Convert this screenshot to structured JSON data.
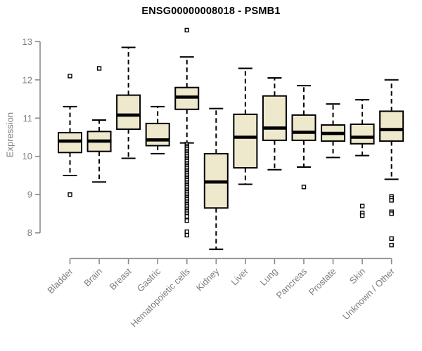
{
  "chart_data": {
    "type": "boxplot",
    "title": "ENSG00000008018 - PSMB1",
    "ylabel": "Expression",
    "xlabel": "",
    "yaxis_range": [
      8,
      13
    ],
    "yticks": [
      8,
      9,
      10,
      11,
      12,
      13
    ],
    "grid": false,
    "axis_color": "#8a8a8a",
    "tick_label_color": "#7d7d7d",
    "box_fill": "#EEE8CD",
    "box_stroke": "#000000",
    "categories": [
      "Bladder",
      "Brain",
      "Breast",
      "Gastric",
      "Hematopoietic cells",
      "Kidney",
      "Liver",
      "Lung",
      "Pancreas",
      "Prostate",
      "Skin",
      "Unknown / Other"
    ],
    "boxes": [
      {
        "label": "Bladder",
        "slug": "bladder",
        "low": 9.5,
        "q1": 10.1,
        "median": 10.4,
        "q3": 10.62,
        "high": 11.3,
        "outliers": [
          12.1,
          9.0
        ]
      },
      {
        "label": "Brain",
        "slug": "brain",
        "low": 9.33,
        "q1": 10.13,
        "median": 10.4,
        "q3": 10.65,
        "high": 10.95,
        "outliers": [
          12.3
        ]
      },
      {
        "label": "Breast",
        "slug": "breast",
        "low": 9.95,
        "q1": 10.71,
        "median": 11.08,
        "q3": 11.6,
        "high": 12.85,
        "outliers": []
      },
      {
        "label": "Gastric",
        "slug": "gastric",
        "low": 10.07,
        "q1": 10.28,
        "median": 10.43,
        "q3": 10.86,
        "high": 11.3,
        "outliers": []
      },
      {
        "label": "Hematopoietic cells",
        "slug": "hematopoietic-cells",
        "low": 10.35,
        "q1": 11.23,
        "median": 11.55,
        "q3": 11.8,
        "high": 12.6,
        "outliers": [
          13.3,
          10.32,
          10.275,
          10.23,
          10.185,
          10.14,
          10.095,
          10.05,
          10.005,
          9.96,
          9.915,
          9.87,
          9.825,
          9.78,
          9.735,
          9.69,
          9.645,
          9.6,
          9.555,
          9.51,
          9.465,
          9.42,
          9.375,
          9.33,
          9.285,
          9.24,
          9.195,
          9.15,
          9.105,
          9.06,
          9.015,
          8.97,
          8.925,
          8.88,
          8.835,
          8.79,
          8.745,
          8.7,
          8.655,
          8.61,
          8.565,
          8.52,
          8.475,
          8.43,
          8.32,
          8.03,
          7.94
        ]
      },
      {
        "label": "Kidney",
        "slug": "kidney",
        "low": 7.57,
        "q1": 8.65,
        "median": 9.33,
        "q3": 10.07,
        "high": 11.25,
        "outliers": []
      },
      {
        "label": "Liver",
        "slug": "liver",
        "low": 9.27,
        "q1": 9.7,
        "median": 10.5,
        "q3": 11.1,
        "high": 12.3,
        "outliers": []
      },
      {
        "label": "Lung",
        "slug": "lung",
        "low": 9.65,
        "q1": 10.42,
        "median": 10.74,
        "q3": 11.58,
        "high": 12.05,
        "outliers": []
      },
      {
        "label": "Pancreas",
        "slug": "pancreas",
        "low": 9.72,
        "q1": 10.42,
        "median": 10.63,
        "q3": 11.08,
        "high": 11.85,
        "outliers": [
          9.2
        ]
      },
      {
        "label": "Prostate",
        "slug": "prostate",
        "low": 9.97,
        "q1": 10.4,
        "median": 10.6,
        "q3": 10.82,
        "high": 11.37,
        "outliers": []
      },
      {
        "label": "Skin",
        "slug": "skin",
        "low": 10.02,
        "q1": 10.33,
        "median": 10.5,
        "q3": 10.84,
        "high": 11.48,
        "outliers": [
          8.7,
          8.52,
          8.45
        ]
      },
      {
        "label": "Unknown / Other",
        "slug": "unknown-other",
        "low": 9.4,
        "q1": 10.4,
        "median": 10.7,
        "q3": 11.18,
        "high": 12.0,
        "outliers": [
          8.95,
          8.9,
          8.85,
          8.55,
          8.5,
          7.85,
          7.68
        ]
      }
    ]
  }
}
